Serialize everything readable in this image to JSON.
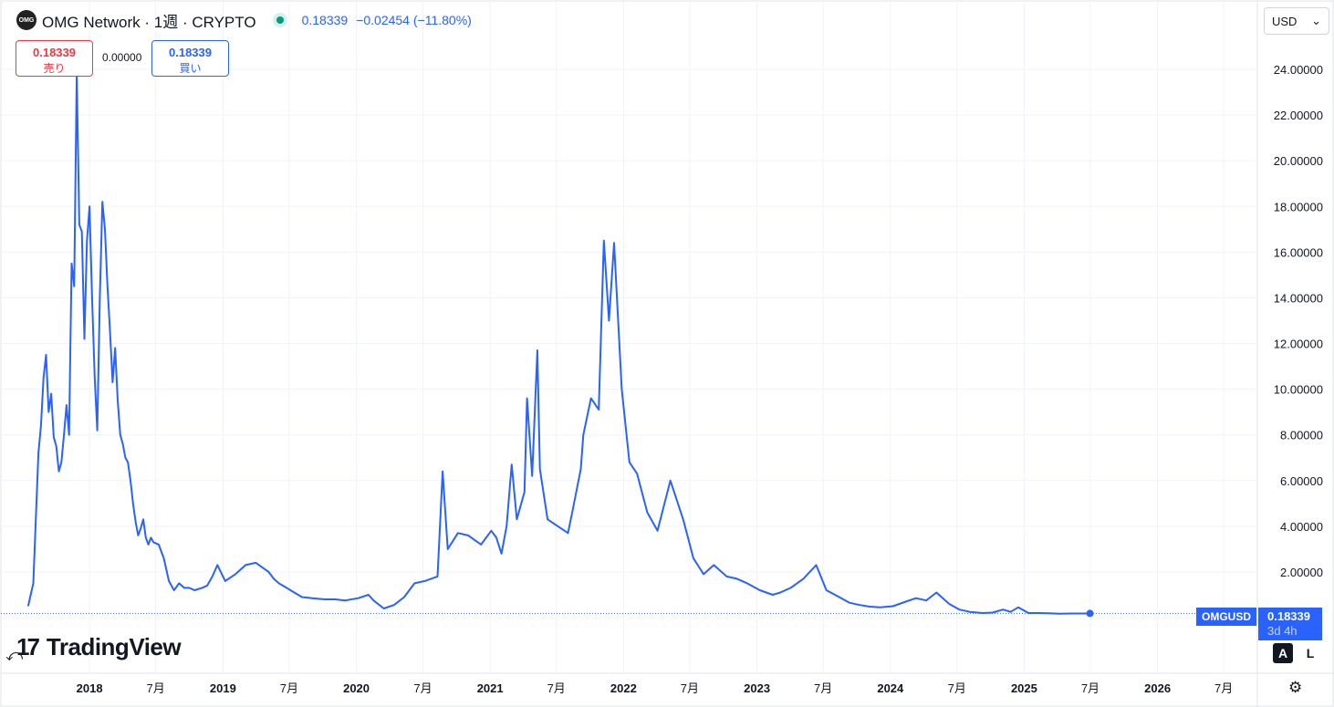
{
  "header": {
    "logo_text": "OMG",
    "title": "OMG Network · 1週 · CRYPTO",
    "price": "0.18339",
    "change": "−0.02454 (−11.80%)"
  },
  "trade": {
    "sell_price": "0.18339",
    "sell_label": "売り",
    "spread": "0.00000",
    "buy_price": "0.18339",
    "buy_label": "買い"
  },
  "currency_selector": {
    "value": "USD",
    "icon": "chevron-down-icon"
  },
  "price_scale": {
    "symbol": "OMGUSD",
    "last_price": "0.18339",
    "countdown": "3d 4h"
  },
  "branding": {
    "name": "TradingView"
  },
  "controls": {
    "auto_label": "A",
    "log_label": "L",
    "settings_icon": "gear-icon"
  },
  "colors": {
    "line": "#2962ff",
    "grid": "#f0f3fa",
    "sell": "#f23645",
    "buy": "#2962ff"
  },
  "chart_data": {
    "type": "line",
    "series": [
      {
        "x": [
          "2017-07-17",
          "2017-07-31",
          "2017-08-14",
          "2017-08-21",
          "2017-08-28",
          "2017-09-04",
          "2017-09-11",
          "2017-09-18",
          "2017-09-25",
          "2017-10-02",
          "2017-10-09",
          "2017-10-16",
          "2017-10-23",
          "2017-10-30",
          "2017-11-06",
          "2017-11-13",
          "2017-11-20",
          "2017-11-27",
          "2017-12-04",
          "2017-12-11",
          "2017-12-18",
          "2017-12-25",
          "2018-01-01",
          "2018-01-08",
          "2018-01-15",
          "2018-01-22",
          "2018-01-29",
          "2018-02-05",
          "2018-02-12",
          "2018-02-19",
          "2018-02-26",
          "2018-03-05",
          "2018-03-12",
          "2018-03-19",
          "2018-03-26",
          "2018-04-02",
          "2018-04-09",
          "2018-04-16",
          "2018-04-23",
          "2018-04-30",
          "2018-05-07",
          "2018-05-14",
          "2018-05-21",
          "2018-05-28",
          "2018-06-04",
          "2018-06-11",
          "2018-06-18",
          "2018-06-25",
          "2018-07-09",
          "2018-07-23",
          "2018-08-06",
          "2018-08-20",
          "2018-09-03",
          "2018-09-17",
          "2018-10-01",
          "2018-10-15",
          "2018-11-05",
          "2018-11-19",
          "2018-12-03",
          "2018-12-17",
          "2019-01-07",
          "2019-02-04",
          "2019-03-04",
          "2019-04-01",
          "2019-05-06",
          "2019-05-20",
          "2019-06-03",
          "2019-06-24",
          "2019-07-15",
          "2019-08-05",
          "2019-09-02",
          "2019-10-07",
          "2019-11-04",
          "2019-12-02",
          "2020-01-06",
          "2020-02-03",
          "2020-02-17",
          "2020-03-16",
          "2020-04-13",
          "2020-05-11",
          "2020-06-08",
          "2020-07-06",
          "2020-08-10",
          "2020-08-24",
          "2020-09-07",
          "2020-10-05",
          "2020-11-02",
          "2020-12-07",
          "2021-01-04",
          "2021-01-18",
          "2021-02-01",
          "2021-02-15",
          "2021-03-01",
          "2021-03-15",
          "2021-04-05",
          "2021-04-12",
          "2021-04-26",
          "2021-05-10",
          "2021-05-17",
          "2021-06-07",
          "2021-07-05",
          "2021-08-02",
          "2021-08-16",
          "2021-09-06",
          "2021-09-13",
          "2021-10-04",
          "2021-10-25",
          "2021-11-08",
          "2021-11-22",
          "2021-12-06",
          "2021-12-27",
          "2022-01-17",
          "2022-02-07",
          "2022-03-07",
          "2022-04-04",
          "2022-05-09",
          "2022-06-13",
          "2022-07-11",
          "2022-08-08",
          "2022-09-05",
          "2022-10-10",
          "2022-11-07",
          "2022-12-05",
          "2023-01-09",
          "2023-02-13",
          "2023-03-06",
          "2023-04-03",
          "2023-05-08",
          "2023-06-12",
          "2023-07-10",
          "2023-08-14",
          "2023-09-11",
          "2023-10-09",
          "2023-11-06",
          "2023-12-04",
          "2024-01-08",
          "2024-02-12",
          "2024-03-11",
          "2024-04-08",
          "2024-05-06",
          "2024-06-10",
          "2024-07-08",
          "2024-08-05",
          "2024-09-09",
          "2024-10-07",
          "2024-11-04",
          "2024-11-25",
          "2024-12-16",
          "2025-01-13",
          "2025-02-10",
          "2025-03-10",
          "2025-04-07",
          "2025-05-12",
          "2025-06-09",
          "2025-06-30"
        ],
        "values": [
          0.5,
          1.5,
          7.2,
          8.4,
          10.5,
          11.5,
          9.0,
          9.8,
          7.9,
          7.5,
          6.4,
          6.8,
          8.0,
          9.3,
          8.0,
          15.5,
          14.5,
          23.8,
          17.2,
          16.9,
          12.2,
          16.5,
          18.0,
          14.0,
          10.5,
          8.2,
          14.0,
          18.2,
          17.0,
          14.5,
          12.5,
          10.3,
          11.8,
          9.5,
          8.0,
          7.6,
          7.0,
          6.8,
          6.0,
          5.0,
          4.2,
          3.6,
          3.9,
          4.3,
          3.5,
          3.2,
          3.5,
          3.3,
          3.2,
          2.6,
          1.6,
          1.2,
          1.5,
          1.3,
          1.3,
          1.2,
          1.3,
          1.4,
          1.8,
          2.3,
          1.6,
          1.9,
          2.3,
          2.4,
          2.0,
          1.7,
          1.5,
          1.3,
          1.1,
          0.9,
          0.85,
          0.8,
          0.8,
          0.75,
          0.85,
          1.0,
          0.75,
          0.4,
          0.55,
          0.9,
          1.5,
          1.6,
          1.8,
          6.4,
          3.0,
          3.7,
          3.6,
          3.2,
          3.8,
          3.5,
          2.8,
          4.0,
          6.7,
          4.3,
          5.5,
          9.6,
          6.2,
          11.7,
          6.5,
          4.3,
          4.0,
          3.7,
          4.8,
          6.5,
          8.0,
          9.6,
          9.1,
          16.5,
          13.0,
          16.4,
          10.0,
          6.8,
          6.3,
          4.6,
          3.8,
          6.0,
          4.3,
          2.6,
          1.9,
          2.3,
          1.8,
          1.7,
          1.5,
          1.2,
          1.0,
          1.1,
          1.3,
          1.7,
          2.3,
          1.2,
          0.9,
          0.65,
          0.55,
          0.48,
          0.45,
          0.5,
          0.7,
          0.85,
          0.75,
          1.1,
          0.6,
          0.35,
          0.25,
          0.2,
          0.22,
          0.35,
          0.25,
          0.45,
          0.2,
          0.2,
          0.19,
          0.17,
          0.18,
          0.18,
          0.18339
        ]
      }
    ],
    "y_ticks": [
      "2.00000",
      "4.00000",
      "6.00000",
      "8.00000",
      "10.00000",
      "12.00000",
      "14.00000",
      "16.00000",
      "18.00000",
      "20.00000",
      "22.00000",
      "24.00000"
    ],
    "x_ticks": [
      {
        "date": "2018-01-01",
        "label": "2018"
      },
      {
        "date": "2018-07-01",
        "label": "7月"
      },
      {
        "date": "2019-01-01",
        "label": "2019"
      },
      {
        "date": "2019-07-01",
        "label": "7月"
      },
      {
        "date": "2020-01-01",
        "label": "2020"
      },
      {
        "date": "2020-07-01",
        "label": "7月"
      },
      {
        "date": "2021-01-01",
        "label": "2021"
      },
      {
        "date": "2021-07-01",
        "label": "7月"
      },
      {
        "date": "2022-01-01",
        "label": "2022"
      },
      {
        "date": "2022-07-01",
        "label": "7月"
      },
      {
        "date": "2023-01-01",
        "label": "2023"
      },
      {
        "date": "2023-07-01",
        "label": "7月"
      },
      {
        "date": "2024-01-01",
        "label": "2024"
      },
      {
        "date": "2024-07-01",
        "label": "7月"
      },
      {
        "date": "2025-01-01",
        "label": "2025"
      },
      {
        "date": "2025-07-01",
        "label": "7月"
      },
      {
        "date": "2026-01-01",
        "label": "2026"
      },
      {
        "date": "2026-07-01",
        "label": "7月"
      }
    ],
    "ylim": [
      0,
      24
    ],
    "xlim": [
      "2017-05-01",
      "2026-10-01"
    ],
    "grid": true,
    "last_value": 0.18339
  }
}
